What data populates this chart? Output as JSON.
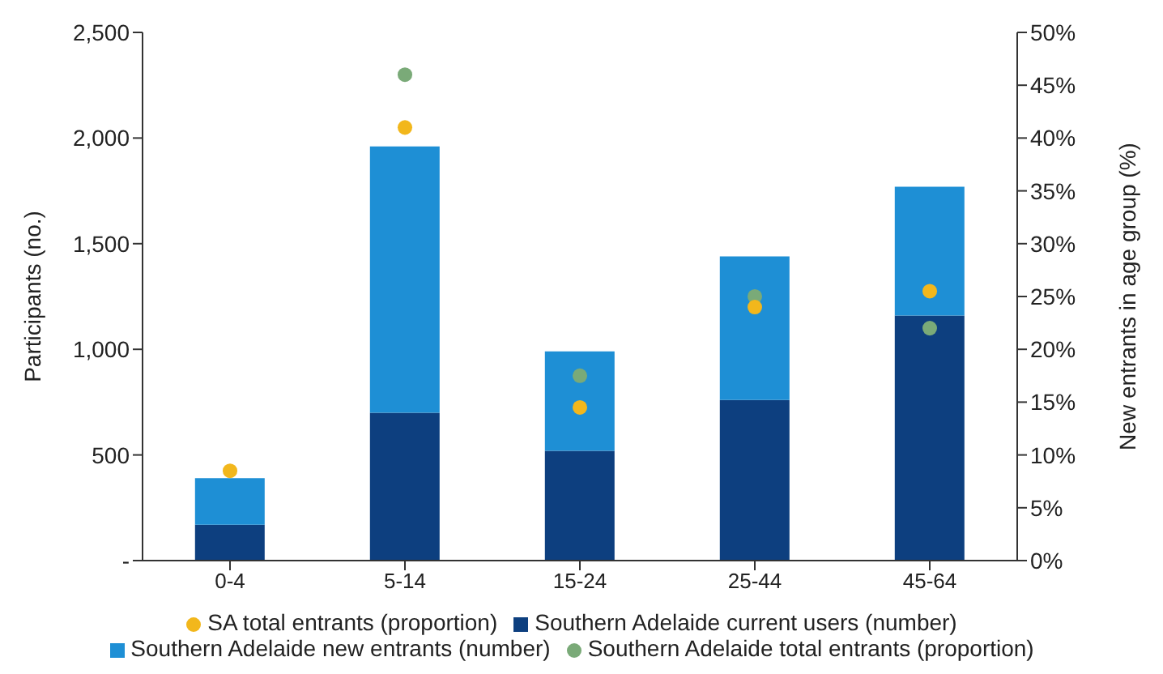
{
  "chart_data": {
    "type": "bar",
    "stacked": true,
    "categories": [
      "0-4",
      "5-14",
      "15-24",
      "25-44",
      "45-64"
    ],
    "series": [
      {
        "name": "Southern Adelaide  current users (number)",
        "color": "#0d3f7f",
        "values": [
          170,
          700,
          520,
          760,
          1160
        ]
      },
      {
        "name": "Southern Adelaide  new entrants (number)",
        "color": "#1e8fd5",
        "values": [
          220,
          1260,
          470,
          680,
          610
        ]
      },
      {
        "name": "Southern Adelaide  total entrants (proportion)",
        "type": "scatter",
        "axis": "y2",
        "color": "#7aaa78",
        "values": [
          null,
          46,
          17.5,
          25,
          22
        ]
      },
      {
        "name": "SA total entrants (proportion)",
        "type": "scatter",
        "axis": "y2",
        "color": "#f2b71c",
        "values": [
          8.5,
          41,
          14.5,
          24,
          25.5
        ]
      }
    ],
    "ylabel": "Participants (no.)",
    "y2label": "New entrants in age group (%)",
    "ylim": [
      0,
      2500
    ],
    "yticks": [
      {
        "value": 0,
        "label": "-"
      },
      {
        "value": 500,
        "label": "500"
      },
      {
        "value": 1000,
        "label": "1,000"
      },
      {
        "value": 1500,
        "label": "1,500"
      },
      {
        "value": 2000,
        "label": "2,000"
      },
      {
        "value": 2500,
        "label": "2,500"
      }
    ],
    "y2lim": [
      0,
      50
    ],
    "y2ticks": [
      {
        "value": 0,
        "label": "0%"
      },
      {
        "value": 5,
        "label": "5%"
      },
      {
        "value": 10,
        "label": "10%"
      },
      {
        "value": 15,
        "label": "15%"
      },
      {
        "value": 20,
        "label": "20%"
      },
      {
        "value": 25,
        "label": "25%"
      },
      {
        "value": 30,
        "label": "30%"
      },
      {
        "value": 35,
        "label": "35%"
      },
      {
        "value": 40,
        "label": "40%"
      },
      {
        "value": 45,
        "label": "45%"
      },
      {
        "value": 50,
        "label": "50%"
      }
    ],
    "grid": false,
    "legend": "bottom",
    "marker": "circle"
  }
}
